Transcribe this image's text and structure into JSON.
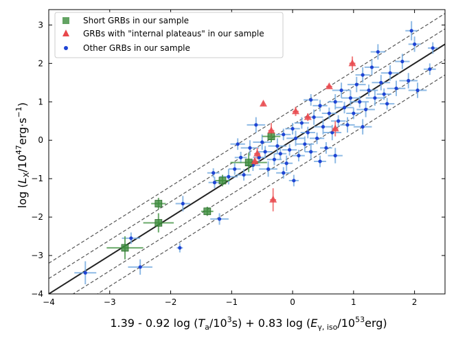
{
  "chart_data": {
    "type": "scatter",
    "xlabel": {
      "prefix": "1.39 - 0.92 log (",
      "var1": "T",
      "sub1": "a",
      "mid1": "/10",
      "sup1": "3",
      "mid2": "s) + 0.83 log (",
      "var2": "E",
      "sub2": "γ, iso",
      "mid3": "/10",
      "sup2": "53",
      "suffix": "erg)"
    },
    "ylabel": {
      "prefix": "log (",
      "var": "L",
      "sub": "X",
      "mid": "/10",
      "sup1": "47",
      "unit": "erg·s",
      "sup2": "−1",
      "suffix": ")"
    },
    "xlim": [
      -4,
      2.5
    ],
    "ylim": [
      -4,
      3.4
    ],
    "xticks": [
      -4,
      -3,
      -2,
      -1,
      0,
      1,
      2
    ],
    "yticks": [
      -4,
      -3,
      -2,
      -1,
      0,
      1,
      2,
      3
    ],
    "tick_labels_x": [
      "−4",
      "−3",
      "−2",
      "−1",
      "0",
      "1",
      "2"
    ],
    "tick_labels_y": [
      "−4",
      "−3",
      "−2",
      "−1",
      "0",
      "1",
      "2",
      "3"
    ],
    "fit_line": {
      "slope": 1.0,
      "intercept": 0.0,
      "color": "#222222"
    },
    "dashed_offsets": [
      -0.8,
      -0.4,
      0.4,
      0.8
    ],
    "legend": [
      {
        "label": "Short GRBs in our sample",
        "marker": "square",
        "color": "#3c8c3c"
      },
      {
        "label": "GRBs with \"internal plateaus\" in our sample",
        "marker": "triangle",
        "color": "#e8474b"
      },
      {
        "label": "Other GRBs in our sample",
        "marker": "circle",
        "color": "#1f44d4"
      }
    ],
    "series": [
      {
        "name": "Short GRBs in our sample",
        "color": "#3c8c3c",
        "points": [
          {
            "x": -2.75,
            "y": -2.8,
            "xe": 0.3,
            "ye": 0.3
          },
          {
            "x": -2.2,
            "y": -1.65,
            "xe": 0.12,
            "ye": 0.15
          },
          {
            "x": -2.2,
            "y": -2.15,
            "xe": 0.25,
            "ye": 0.25
          },
          {
            "x": -1.4,
            "y": -1.85,
            "xe": 0.1,
            "ye": 0.12
          },
          {
            "x": -1.15,
            "y": -1.05,
            "xe": 0.12,
            "ye": 0.15
          },
          {
            "x": -0.72,
            "y": -0.58,
            "xe": 0.3,
            "ye": 0.25
          },
          {
            "x": -0.35,
            "y": 0.1,
            "xe": 0.15,
            "ye": 0.15
          }
        ]
      },
      {
        "name": "GRBs with \"internal plateaus\" in our sample",
        "color": "#e8474b",
        "points": [
          {
            "x": -0.48,
            "y": 0.95,
            "xe": 0.0,
            "ye": 0.05
          },
          {
            "x": -0.32,
            "y": -1.55,
            "xe": 0.05,
            "ye": 0.3
          },
          {
            "x": -0.35,
            "y": 0.25,
            "xe": 0.05,
            "ye": 0.2
          },
          {
            "x": -0.58,
            "y": -0.35,
            "xe": 0.05,
            "ye": 0.15
          },
          {
            "x": -0.62,
            "y": -0.55,
            "xe": 0.05,
            "ye": 0.1
          },
          {
            "x": 0.05,
            "y": 0.75,
            "xe": 0.05,
            "ye": 0.12
          },
          {
            "x": 0.25,
            "y": 0.6,
            "xe": 0.05,
            "ye": 0.1
          },
          {
            "x": 0.6,
            "y": 1.4,
            "xe": 0.05,
            "ye": 0.05
          },
          {
            "x": 0.7,
            "y": 0.3,
            "xe": 0.05,
            "ye": 0.2
          },
          {
            "x": 0.98,
            "y": 2.0,
            "xe": 0.05,
            "ye": 0.18
          }
        ]
      },
      {
        "name": "Other GRBs in our sample",
        "color": "#1f44d4",
        "points": [
          {
            "x": -3.4,
            "y": -3.45,
            "xe": 0.18,
            "ye": 0.3
          },
          {
            "x": -2.65,
            "y": -2.55,
            "xe": 0.15,
            "ye": 0.15
          },
          {
            "x": -2.5,
            "y": -3.3,
            "xe": 0.2,
            "ye": 0.2
          },
          {
            "x": -1.85,
            "y": -2.8,
            "xe": 0.05,
            "ye": 0.12
          },
          {
            "x": -1.8,
            "y": -1.65,
            "xe": 0.12,
            "ye": 0.2
          },
          {
            "x": -1.2,
            "y": -2.05,
            "xe": 0.15,
            "ye": 0.15
          },
          {
            "x": -1.28,
            "y": -1.1,
            "xe": 0.1,
            "ye": 0.15
          },
          {
            "x": -1.3,
            "y": -0.85,
            "xe": 0.1,
            "ye": 0.12
          },
          {
            "x": -1.05,
            "y": -0.95,
            "xe": 0.15,
            "ye": 0.2
          },
          {
            "x": -0.95,
            "y": -0.75,
            "xe": 0.1,
            "ye": 0.15
          },
          {
            "x": -0.85,
            "y": -0.45,
            "xe": 0.1,
            "ye": 0.15
          },
          {
            "x": -0.8,
            "y": -0.9,
            "xe": 0.12,
            "ye": 0.15
          },
          {
            "x": -0.7,
            "y": -0.2,
            "xe": 0.15,
            "ye": 0.2
          },
          {
            "x": -0.65,
            "y": -0.65,
            "xe": 0.12,
            "ye": 0.15
          },
          {
            "x": -0.55,
            "y": -0.45,
            "xe": 0.1,
            "ye": 0.15
          },
          {
            "x": -0.5,
            "y": -0.05,
            "xe": 0.15,
            "ye": 0.2
          },
          {
            "x": -0.45,
            "y": -0.3,
            "xe": 0.12,
            "ye": 0.15
          },
          {
            "x": -0.4,
            "y": -0.75,
            "xe": 0.15,
            "ye": 0.2
          },
          {
            "x": -0.3,
            "y": -0.5,
            "xe": 0.12,
            "ye": 0.15
          },
          {
            "x": -0.25,
            "y": -0.15,
            "xe": 0.15,
            "ye": 0.2
          },
          {
            "x": -0.2,
            "y": -0.35,
            "xe": 0.1,
            "ye": 0.15
          },
          {
            "x": -0.15,
            "y": 0.15,
            "xe": 0.12,
            "ye": 0.15
          },
          {
            "x": -0.1,
            "y": -0.6,
            "xe": 0.1,
            "ye": 0.2
          },
          {
            "x": -0.05,
            "y": -0.25,
            "xe": 0.12,
            "ye": 0.15
          },
          {
            "x": 0.0,
            "y": 0.3,
            "xe": 0.12,
            "ye": 0.15
          },
          {
            "x": 0.02,
            "y": -1.05,
            "xe": 0.08,
            "ye": 0.15
          },
          {
            "x": 0.05,
            "y": 0.05,
            "xe": 0.15,
            "ye": 0.2
          },
          {
            "x": 0.1,
            "y": -0.4,
            "xe": 0.1,
            "ye": 0.15
          },
          {
            "x": 0.15,
            "y": 0.45,
            "xe": 0.12,
            "ye": 0.15
          },
          {
            "x": 0.2,
            "y": -0.1,
            "xe": 0.15,
            "ye": 0.2
          },
          {
            "x": 0.25,
            "y": 0.2,
            "xe": 0.12,
            "ye": 0.15
          },
          {
            "x": 0.3,
            "y": -0.3,
            "xe": 0.1,
            "ye": 0.2
          },
          {
            "x": 0.35,
            "y": 0.6,
            "xe": 0.15,
            "ye": 0.2
          },
          {
            "x": 0.4,
            "y": 0.05,
            "xe": 0.12,
            "ye": 0.15
          },
          {
            "x": 0.45,
            "y": 0.9,
            "xe": 0.12,
            "ye": 0.15
          },
          {
            "x": 0.5,
            "y": 0.35,
            "xe": 0.15,
            "ye": 0.2
          },
          {
            "x": 0.55,
            "y": -0.2,
            "xe": 0.1,
            "ye": 0.15
          },
          {
            "x": 0.6,
            "y": 0.7,
            "xe": 0.12,
            "ye": 0.15
          },
          {
            "x": 0.65,
            "y": 0.2,
            "xe": 0.15,
            "ye": 0.2
          },
          {
            "x": 0.7,
            "y": 1.0,
            "xe": 0.12,
            "ye": 0.2
          },
          {
            "x": 0.75,
            "y": 0.5,
            "xe": 0.12,
            "ye": 0.15
          },
          {
            "x": 0.8,
            "y": 1.3,
            "xe": 0.15,
            "ye": 0.2
          },
          {
            "x": 0.85,
            "y": 0.85,
            "xe": 0.15,
            "ye": 0.15
          },
          {
            "x": 0.9,
            "y": 0.4,
            "xe": 0.12,
            "ye": 0.2
          },
          {
            "x": 0.95,
            "y": 1.1,
            "xe": 0.15,
            "ye": 0.2
          },
          {
            "x": 1.0,
            "y": 0.7,
            "xe": 0.12,
            "ye": 0.15
          },
          {
            "x": 1.05,
            "y": 1.45,
            "xe": 0.15,
            "ye": 0.2
          },
          {
            "x": 1.1,
            "y": 1.0,
            "xe": 0.15,
            "ye": 0.15
          },
          {
            "x": 1.15,
            "y": 1.7,
            "xe": 0.12,
            "ye": 0.2
          },
          {
            "x": 1.2,
            "y": 0.8,
            "xe": 0.15,
            "ye": 0.2
          },
          {
            "x": 1.25,
            "y": 1.3,
            "xe": 0.15,
            "ye": 0.15
          },
          {
            "x": 1.3,
            "y": 1.9,
            "xe": 0.12,
            "ye": 0.2
          },
          {
            "x": 1.35,
            "y": 1.1,
            "xe": 0.15,
            "ye": 0.2
          },
          {
            "x": 1.45,
            "y": 1.5,
            "xe": 0.15,
            "ye": 0.2
          },
          {
            "x": 1.5,
            "y": 1.2,
            "xe": 0.12,
            "ye": 0.15
          },
          {
            "x": 1.6,
            "y": 1.75,
            "xe": 0.15,
            "ye": 0.2
          },
          {
            "x": 1.7,
            "y": 1.35,
            "xe": 0.15,
            "ye": 0.2
          },
          {
            "x": 1.8,
            "y": 2.05,
            "xe": 0.12,
            "ye": 0.2
          },
          {
            "x": 1.9,
            "y": 1.55,
            "xe": 0.15,
            "ye": 0.2
          },
          {
            "x": 1.95,
            "y": 2.85,
            "xe": 0.1,
            "ye": 0.25
          },
          {
            "x": 2.0,
            "y": 2.5,
            "xe": 0.1,
            "ye": 0.2
          },
          {
            "x": 2.05,
            "y": 1.3,
            "xe": 0.15,
            "ye": 0.2
          },
          {
            "x": 2.25,
            "y": 1.85,
            "xe": 0.1,
            "ye": 0.15
          },
          {
            "x": 2.3,
            "y": 2.4,
            "xe": 0.08,
            "ye": 0.15
          },
          {
            "x": 1.4,
            "y": 2.3,
            "xe": 0.12,
            "ye": 0.2
          },
          {
            "x": 0.7,
            "y": -0.4,
            "xe": 0.12,
            "ye": 0.2
          },
          {
            "x": -0.15,
            "y": -0.85,
            "xe": 0.12,
            "ye": 0.15
          },
          {
            "x": 0.45,
            "y": -0.55,
            "xe": 0.1,
            "ye": 0.15
          },
          {
            "x": 1.15,
            "y": 0.35,
            "xe": 0.15,
            "ye": 0.2
          },
          {
            "x": -0.9,
            "y": -0.1,
            "xe": 0.12,
            "ye": 0.15
          },
          {
            "x": -0.6,
            "y": 0.4,
            "xe": 0.15,
            "ye": 0.2
          },
          {
            "x": 0.3,
            "y": 1.05,
            "xe": 0.12,
            "ye": 0.15
          },
          {
            "x": 1.55,
            "y": 0.95,
            "xe": 0.12,
            "ye": 0.15
          }
        ]
      }
    ]
  }
}
